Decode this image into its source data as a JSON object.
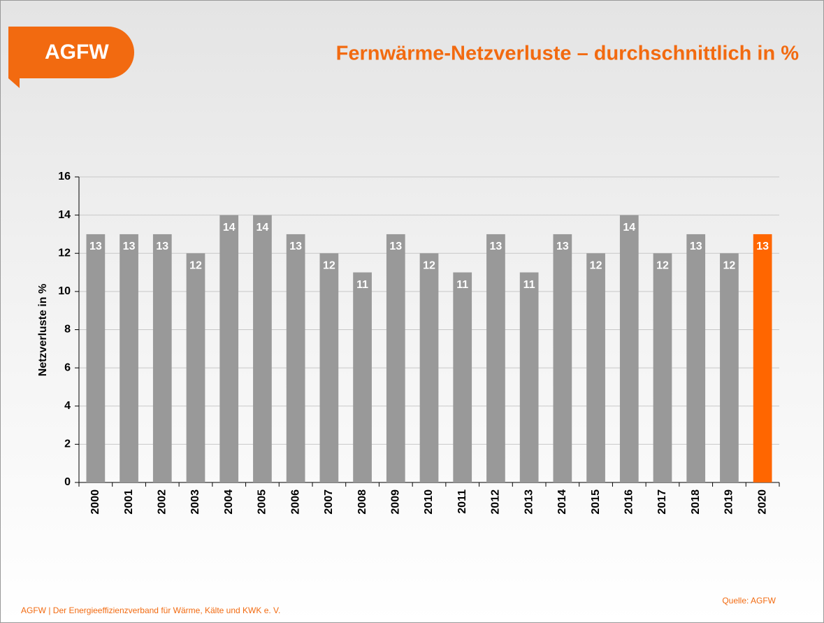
{
  "logo": "AGFW",
  "footer": "AGFW | Der Energieeffizienzverband für Wärme, Kälte und KWK e. V.",
  "source": "Quelle: AGFW",
  "chart_data": {
    "type": "bar",
    "title": "Fernwärme-Netzverluste – durchschnittlich in %",
    "y_label": "Netzverluste in %",
    "categories": [
      "2000",
      "2001",
      "2002",
      "2003",
      "2004",
      "2005",
      "2006",
      "2007",
      "2008",
      "2009",
      "2010",
      "2011",
      "2012",
      "2013",
      "2014",
      "2015",
      "2016",
      "2017",
      "2018",
      "2019",
      "2020"
    ],
    "values": [
      13,
      13,
      13,
      12,
      14,
      14,
      13,
      12,
      11,
      13,
      12,
      11,
      13,
      11,
      13,
      12,
      14,
      12,
      13,
      12,
      13
    ],
    "colors": [
      "#999999",
      "#999999",
      "#999999",
      "#999999",
      "#999999",
      "#999999",
      "#999999",
      "#999999",
      "#999999",
      "#999999",
      "#999999",
      "#999999",
      "#999999",
      "#999999",
      "#999999",
      "#999999",
      "#999999",
      "#999999",
      "#999999",
      "#999999",
      "#ff6600"
    ],
    "ylim": [
      0,
      16
    ],
    "yticks": [
      0,
      2,
      4,
      6,
      8,
      10,
      12,
      14,
      16
    ],
    "grid": true
  }
}
